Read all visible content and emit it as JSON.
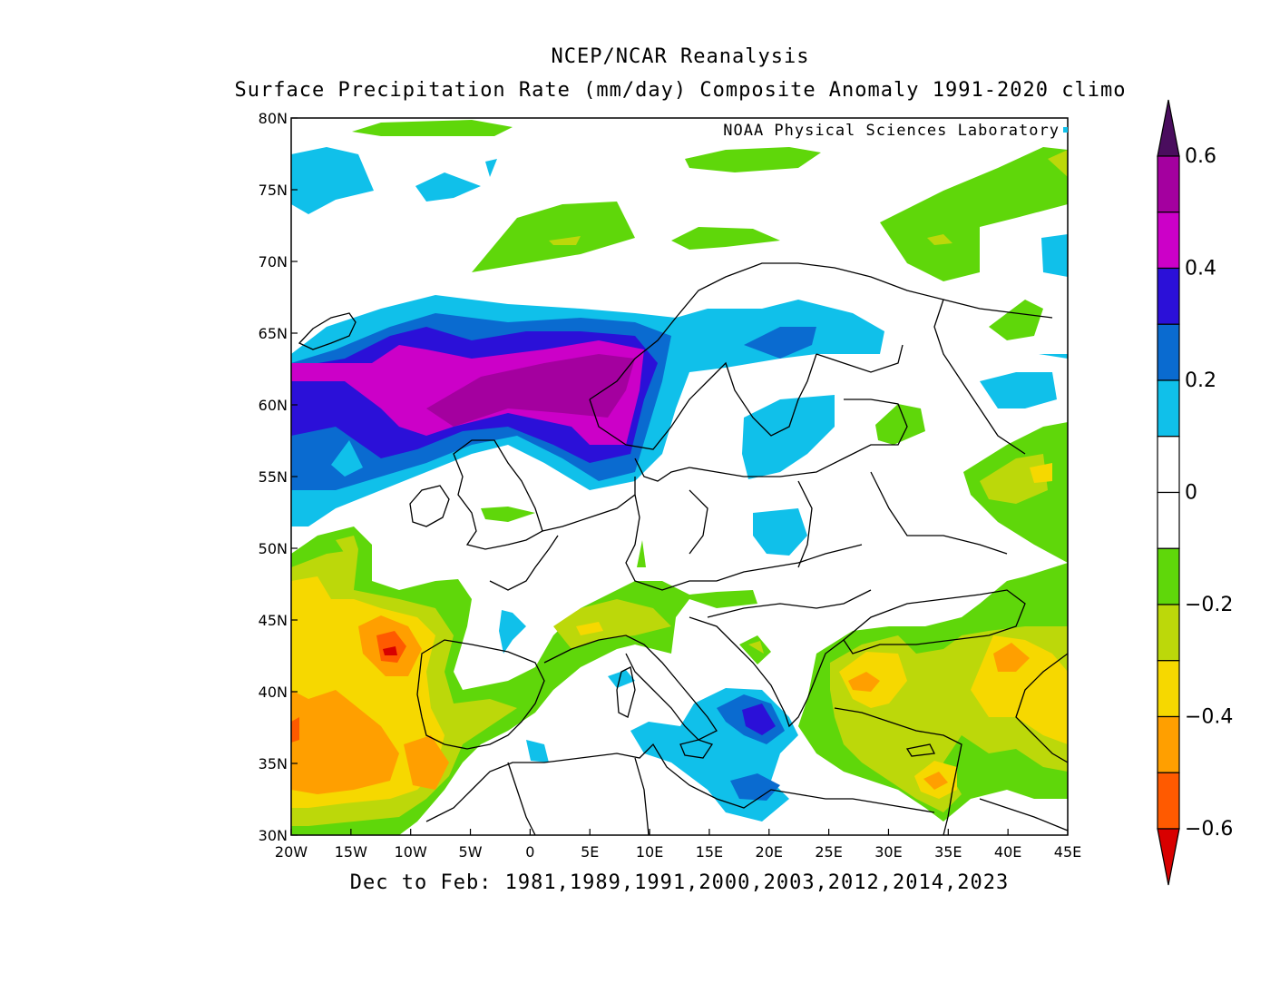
{
  "title_line1": "NCEP/NCAR Reanalysis",
  "title_line2": "Surface Precipitation Rate (mm/day) Composite Anomaly 1991-2020 climo",
  "credit": "NOAA Physical Sciences Laboratory",
  "x_caption": "Dec to Feb: 1981,1989,1991,2000,2003,2012,2014,2023",
  "map": {
    "lon_range": [
      -20,
      45
    ],
    "lat_range": [
      30,
      80
    ],
    "lon_ticks": [
      "20W",
      "15W",
      "10W",
      "5W",
      "0",
      "5E",
      "10E",
      "15E",
      "20E",
      "25E",
      "30E",
      "35E",
      "40E",
      "45E"
    ],
    "lat_ticks": [
      "30N",
      "35N",
      "40N",
      "45N",
      "50N",
      "55N",
      "60N",
      "65N",
      "70N",
      "75N",
      "80N"
    ]
  },
  "colorbar": {
    "colors": [
      "#4a0d5e",
      "#a4009f",
      "#cc00c8",
      "#2b10d8",
      "#0a6bd0",
      "#10c0ea",
      "#ffffff",
      "#ffffff",
      "#5fd70a",
      "#bcd80a",
      "#f6d800",
      "#ff9f00",
      "#ff5a00",
      "#d80000"
    ],
    "labels": [
      "0.6",
      "0.4",
      "0.2",
      "0",
      "−0.2",
      "−0.4",
      "−0.6"
    ]
  }
}
